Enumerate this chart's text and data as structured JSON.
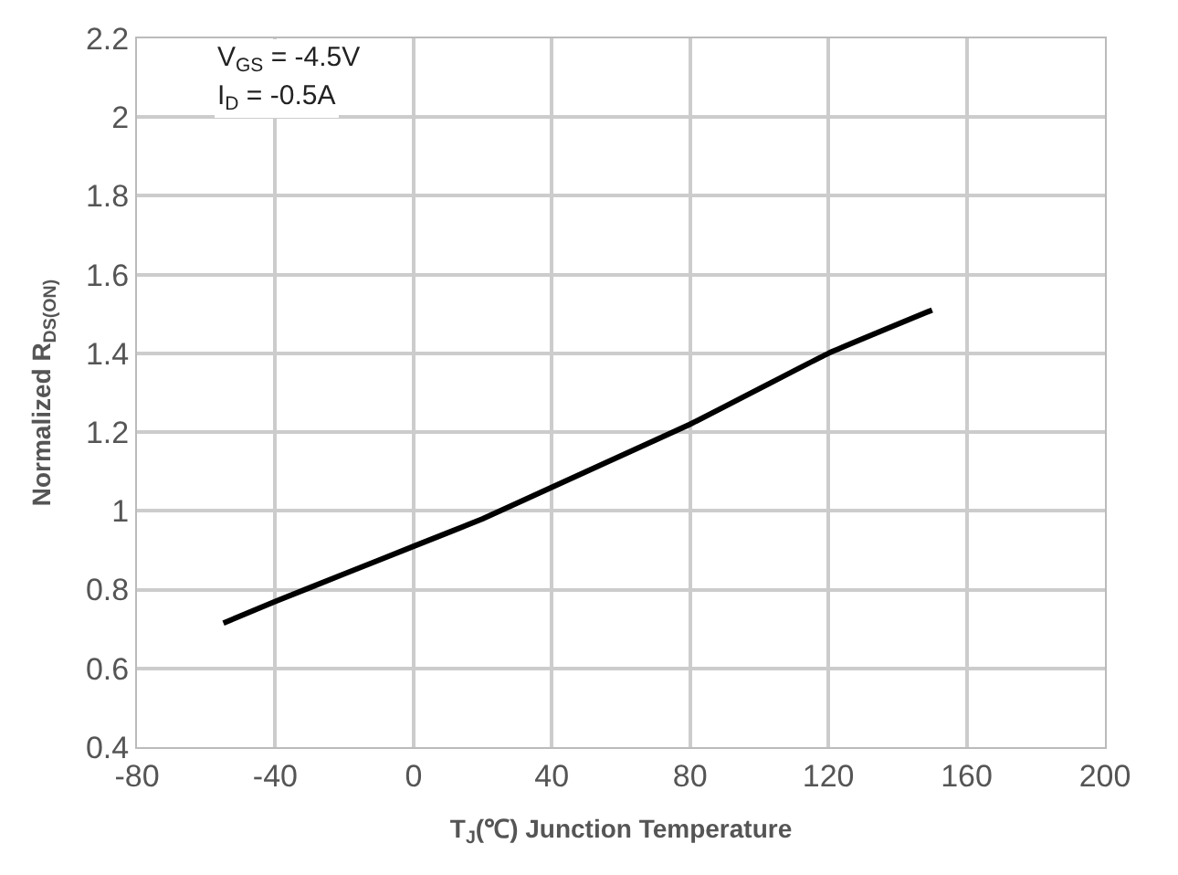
{
  "chart_data": {
    "type": "line",
    "xlabel": "T$_{J}$(℃) Junction Temperature",
    "ylabel": "Normalized R$_{DS(ON)}$",
    "annotations": [
      "V$_{GS}$ = -4.5V",
      "I$_{D}$ = -0.5A"
    ],
    "x": [
      -55,
      -40,
      -20,
      0,
      20,
      40,
      60,
      80,
      100,
      120,
      150
    ],
    "series": [
      {
        "color": "#000000",
        "values": [
          0.715,
          0.77,
          0.84,
          0.91,
          0.98,
          1.06,
          1.14,
          1.22,
          1.31,
          1.4,
          1.51
        ]
      }
    ],
    "xlim": [
      -80,
      200
    ],
    "xticks": [
      -80,
      -40,
      0,
      40,
      80,
      120,
      160,
      200
    ],
    "ylim": [
      0.4,
      2.2
    ],
    "yticks": [
      0.4,
      0.6,
      0.8,
      1,
      1.2,
      1.4,
      1.6,
      1.8,
      2,
      2.2
    ],
    "grid": true,
    "legend": false,
    "marker": "none",
    "line_style": "solid"
  }
}
